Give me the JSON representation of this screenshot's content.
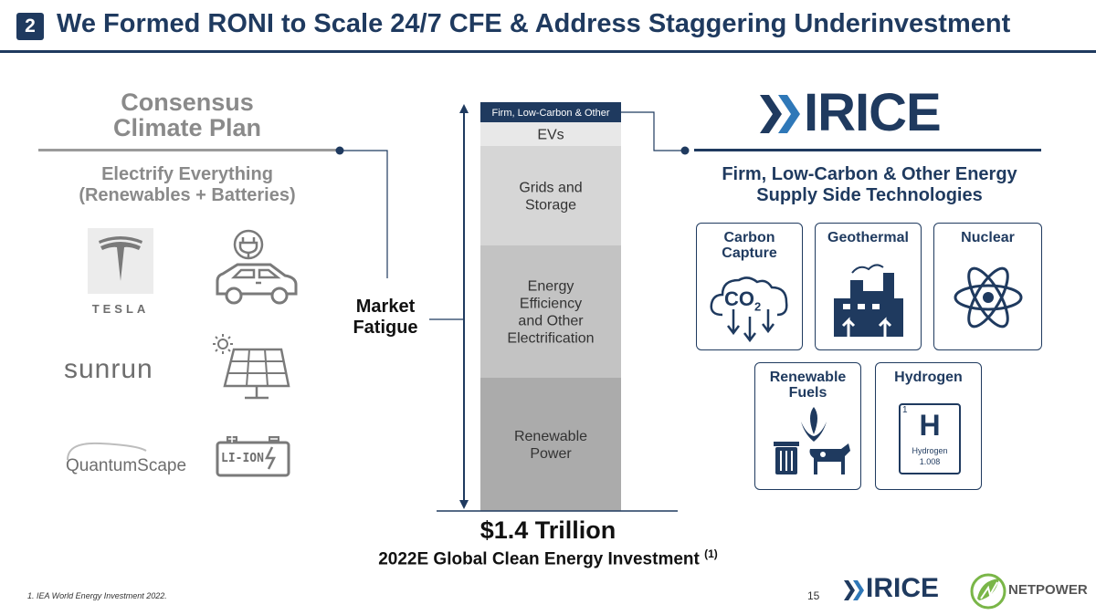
{
  "header": {
    "badge": "2",
    "title": "We Formed RONI to Scale 24/7 CFE & Address Staggering Underinvestment"
  },
  "left": {
    "title_line1": "Consensus",
    "title_line2": "Climate Plan",
    "subtitle_line1": "Electrify Everything",
    "subtitle_line2": "(Renewables + Batteries)",
    "logos": {
      "tesla": "TESLA",
      "sunrun": "sunrun",
      "quantumscape": "QuantumScape",
      "battery": "LI-ION"
    }
  },
  "center": {
    "market_line1": "Market",
    "market_line2": "Fatigue",
    "total": "$1.4 Trillion",
    "caption": "2022E Global Clean Energy Investment",
    "caption_sup": "(1)"
  },
  "chart_data": {
    "type": "bar",
    "stacked": true,
    "segments": [
      {
        "label": "Renewable Power",
        "lines": [
          "Renewable",
          "Power"
        ],
        "value": 146,
        "color": "#ababab"
      },
      {
        "label": "Energy Efficiency and Other Electrification",
        "lines": [
          "Energy",
          "Efficiency",
          "and Other",
          "Electrification"
        ],
        "value": 145,
        "color": "#c3c3c3"
      },
      {
        "label": "Grids and Storage",
        "lines": [
          "Grids and",
          "Storage"
        ],
        "value": 109,
        "color": "#d6d6d6"
      },
      {
        "label": "EVs",
        "lines": [
          "EVs"
        ],
        "value": 26,
        "color": "#e8e8e8"
      },
      {
        "label": "Firm, Low-Carbon & Other",
        "lines": [
          "Firm, Low-Carbon & Other"
        ],
        "value": 22,
        "color": "#1f3a5f"
      }
    ]
  },
  "right": {
    "brand": "RICE",
    "subtitle_line1": "Firm, Low-Carbon & Other Energy",
    "subtitle_line2": "Supply Side Technologies",
    "cards": {
      "carbon_capture": {
        "line1": "Carbon",
        "line2": "Capture",
        "co2": "CO",
        "co2_sub": "2"
      },
      "geothermal": {
        "line1": "Geothermal"
      },
      "nuclear": {
        "line1": "Nuclear"
      },
      "renewable_fuels": {
        "line1": "Renewable",
        "line2": "Fuels"
      },
      "hydrogen": {
        "line1": "Hydrogen",
        "tile_number": "1",
        "tile_symbol": "H",
        "tile_name": "Hydrogen",
        "tile_mass": "1.008"
      }
    }
  },
  "footer": {
    "footnote": "1.  IEA World Energy Investment 2022.",
    "page": "15",
    "rice": "RICE",
    "netpower": "NETPOWER"
  },
  "colors": {
    "navy": "#1f3a5f",
    "gray_text": "#8a8a8a",
    "green": "#7ab648"
  }
}
